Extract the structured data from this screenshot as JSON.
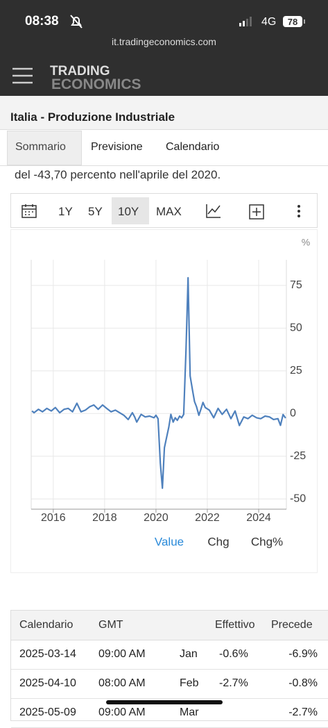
{
  "status_bar": {
    "time": "08:38",
    "network": "4G",
    "battery": "78"
  },
  "browser": {
    "url": "it.tradingeconomics.com"
  },
  "header": {
    "logo_top": "TRADING",
    "logo_bottom": "ECONOMICS"
  },
  "page": {
    "title": "Italia - Produzione Industriale",
    "tabs": [
      "Sommario",
      "Previsione",
      "Calendario"
    ],
    "text": "del -43,70 percento nell'aprile del 2020."
  },
  "toolbar": {
    "ranges": [
      "1Y",
      "5Y",
      "10Y",
      "MAX"
    ]
  },
  "chart_data": {
    "type": "line",
    "y_unit": "%",
    "color": "#4f81bd",
    "grid": true,
    "x": [
      2015.17,
      2015.25,
      2015.42,
      2015.58,
      2015.75,
      2015.92,
      2016.08,
      2016.25,
      2016.42,
      2016.58,
      2016.75,
      2016.92,
      2017.08,
      2017.25,
      2017.42,
      2017.58,
      2017.75,
      2017.92,
      2018.08,
      2018.25,
      2018.42,
      2018.58,
      2018.75,
      2018.92,
      2019.08,
      2019.17,
      2019.25,
      2019.42,
      2019.58,
      2019.75,
      2019.92,
      2020.0,
      2020.08,
      2020.17,
      2020.25,
      2020.33,
      2020.42,
      2020.5,
      2020.58,
      2020.67,
      2020.75,
      2020.83,
      2020.92,
      2021.0,
      2021.08,
      2021.17,
      2021.25,
      2021.33,
      2021.42,
      2021.5,
      2021.58,
      2021.67,
      2021.75,
      2021.83,
      2021.92,
      2022.08,
      2022.25,
      2022.42,
      2022.58,
      2022.75,
      2022.92,
      2023.08,
      2023.25,
      2023.42,
      2023.58,
      2023.75,
      2023.92,
      2024.08,
      2024.25,
      2024.42,
      2024.58,
      2024.75,
      2024.85,
      2024.95,
      2025.05
    ],
    "values": [
      1.5,
      0.5,
      2.5,
      1.0,
      3.0,
      1.5,
      3.5,
      0.5,
      2.5,
      3.0,
      1.0,
      6.0,
      1.0,
      2.0,
      4.0,
      5.0,
      2.5,
      5.0,
      3.0,
      1.0,
      2.0,
      0.5,
      -1.0,
      -3.5,
      0.5,
      -2.0,
      -5.0,
      -0.5,
      -2.0,
      -1.5,
      -2.5,
      -1.0,
      -3.0,
      -29.0,
      -43.7,
      -20.0,
      -13.5,
      -8.0,
      -0.5,
      -5.0,
      -2.5,
      -4.0,
      -1.5,
      -2.5,
      -0.5,
      37.0,
      79.5,
      22.0,
      14.0,
      7.0,
      4.0,
      -1.0,
      2.5,
      6.5,
      3.5,
      2.0,
      -2.5,
      3.0,
      -0.5,
      2.5,
      -3.0,
      1.5,
      -7.0,
      -2.0,
      -3.0,
      -1.0,
      -2.5,
      -3.0,
      -1.5,
      -2.0,
      -3.5,
      -3.0,
      -6.9,
      -0.6,
      -2.7
    ],
    "xlim": [
      2015.14,
      2025.08
    ],
    "ylim": [
      -56,
      90
    ],
    "xticks": [
      2016,
      2018,
      2020,
      2022,
      2024
    ],
    "yticks": [
      -50,
      -25,
      0,
      25,
      50,
      75
    ],
    "view_tabs": [
      "Value",
      "Chg",
      "Chg%"
    ]
  },
  "table": {
    "header": [
      "Calendario",
      "GMT",
      "Effettivo",
      "Precede"
    ],
    "rows": [
      {
        "date": "2025-03-14",
        "time": "09:00 AM",
        "ref": "Jan",
        "actual": "-0.6%",
        "previous": "-6.9%"
      },
      {
        "date": "2025-04-10",
        "time": "08:00 AM",
        "ref": "Feb",
        "actual": "-2.7%",
        "previous": "-0.8%"
      },
      {
        "date": "2025-05-09",
        "time": "09:00 AM",
        "ref": "Mar",
        "previous": "-2.7%"
      }
    ]
  }
}
